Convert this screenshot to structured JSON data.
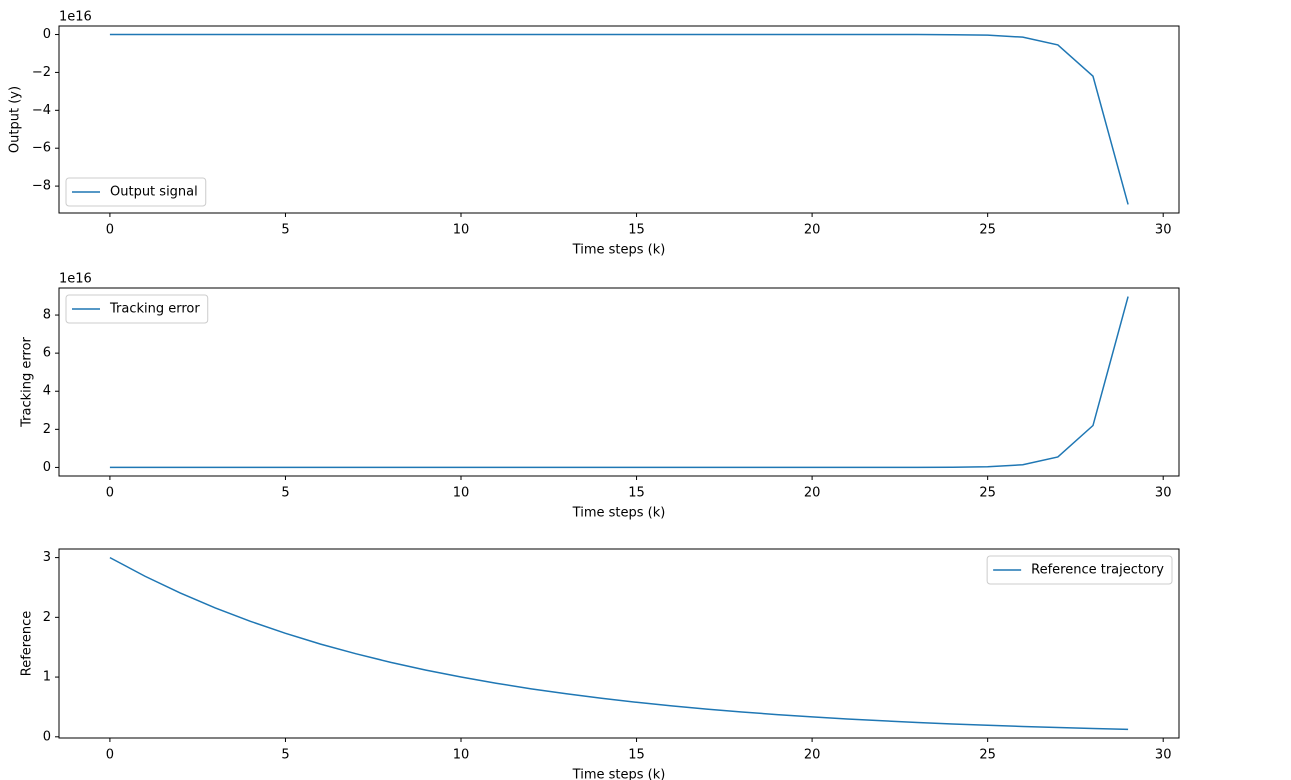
{
  "chart_data": [
    {
      "type": "line",
      "xlabel": "Time steps (k)",
      "ylabel": "Output (y)",
      "offset_label": "1e16",
      "x": [
        0,
        1,
        2,
        3,
        4,
        5,
        6,
        7,
        8,
        9,
        10,
        11,
        12,
        13,
        14,
        15,
        16,
        17,
        18,
        19,
        20,
        21,
        22,
        23,
        24,
        25,
        26,
        27,
        28,
        29
      ],
      "series": [
        {
          "name": "Output signal",
          "color": "#1f77b4",
          "values": [
            0,
            0,
            0,
            0,
            0,
            0,
            0,
            0,
            0,
            0,
            0,
            0,
            0,
            0,
            0,
            0,
            0,
            0,
            0,
            0,
            0,
            0,
            0,
            -0.002,
            -0.009,
            -0.034,
            -0.14,
            -0.55,
            -2.2,
            -8.97
          ]
        }
      ],
      "xlim": [
        -1.45,
        30.45
      ],
      "xticks": [
        0,
        5,
        10,
        15,
        20,
        25,
        30
      ],
      "ylim": [
        -9.42,
        0.45
      ],
      "yticks": [
        0,
        {
          "value": -2,
          "label": "−2"
        },
        {
          "value": -4,
          "label": "−4"
        },
        {
          "value": -6,
          "label": "−6"
        },
        {
          "value": -8,
          "label": "−8"
        }
      ],
      "legend": "lower left"
    },
    {
      "type": "line",
      "xlabel": "Time steps (k)",
      "ylabel": "Tracking error",
      "offset_label": "1e16",
      "x": [
        0,
        1,
        2,
        3,
        4,
        5,
        6,
        7,
        8,
        9,
        10,
        11,
        12,
        13,
        14,
        15,
        16,
        17,
        18,
        19,
        20,
        21,
        22,
        23,
        24,
        25,
        26,
        27,
        28,
        29
      ],
      "series": [
        {
          "name": "Tracking error",
          "color": "#1f77b4",
          "values": [
            0,
            0,
            0,
            0,
            0,
            0,
            0,
            0,
            0,
            0,
            0,
            0,
            0,
            0,
            0,
            0,
            0,
            0,
            0,
            0,
            0,
            0,
            0,
            0.002,
            0.009,
            0.034,
            0.14,
            0.55,
            2.2,
            8.97
          ]
        }
      ],
      "xlim": [
        -1.45,
        30.45
      ],
      "xticks": [
        0,
        5,
        10,
        15,
        20,
        25,
        30
      ],
      "ylim": [
        -0.45,
        9.42
      ],
      "yticks": [
        0,
        2,
        4,
        6,
        8
      ],
      "legend": "upper left"
    },
    {
      "type": "line",
      "xlabel": "Time steps (k)",
      "ylabel": "Reference",
      "x": [
        0,
        1,
        2,
        3,
        4,
        5,
        6,
        7,
        8,
        9,
        10,
        11,
        12,
        13,
        14,
        15,
        16,
        17,
        18,
        19,
        20,
        21,
        22,
        23,
        24,
        25,
        26,
        27,
        28,
        29
      ],
      "series": [
        {
          "name": "Reference trajectory",
          "color": "#1f77b4",
          "values": [
            3,
            2.688,
            2.408,
            2.158,
            1.934,
            1.733,
            1.552,
            1.391,
            1.246,
            1.117,
            1.001,
            0.897,
            0.803,
            0.72,
            0.645,
            0.578,
            0.518,
            0.464,
            0.416,
            0.372,
            0.334,
            0.299,
            0.268,
            0.24,
            0.215,
            0.193,
            0.173,
            0.155,
            0.139,
            0.124
          ]
        }
      ],
      "xlim": [
        -1.45,
        30.45
      ],
      "xticks": [
        0,
        5,
        10,
        15,
        20,
        25,
        30
      ],
      "ylim": [
        -0.02,
        3.144
      ],
      "yticks": [
        0,
        1,
        2,
        3
      ],
      "legend": "upper right"
    }
  ]
}
